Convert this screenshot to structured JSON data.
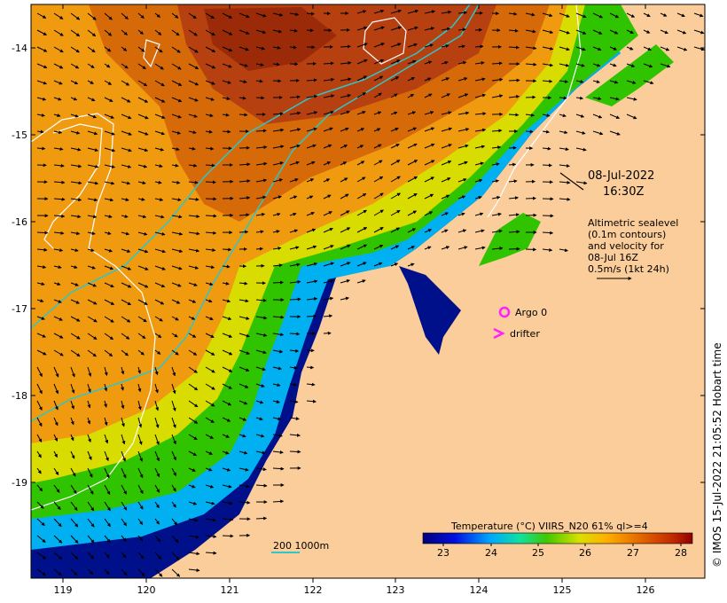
{
  "map": {
    "date": "08-Jul-2022",
    "time": "16:30Z",
    "info_lines": [
      "Altimetric sealevel",
      "(0.1m contours)",
      "and velocity for",
      "08-Jul 16Z",
      "0.5m/s (1kt 24h)"
    ],
    "argo_label": "Argo 0",
    "drifter_label": "drifter",
    "bathy_label": "200  1000m",
    "colorbar_title": "Temperature (°C) VIIRS_N20 61% ql>=4",
    "colorbar_ticks": [
      "23",
      "24",
      "25",
      "26",
      "27",
      "28"
    ],
    "lon_ticks": [
      "119",
      "120",
      "121",
      "122",
      "123",
      "124",
      "125",
      "126"
    ],
    "lat_ticks": [
      "-14",
      "-15",
      "-16",
      "-17",
      "-18",
      "-19"
    ],
    "credit": "© IMOS 15-Jul-2022 21:05:52 Hobart time",
    "colors": {
      "land": "#fbcd9a",
      "contour": "#ffffff",
      "bathymetry": "#2fc6c8",
      "argo": "#ff20ff",
      "drifter": "#ff20ff"
    }
  }
}
